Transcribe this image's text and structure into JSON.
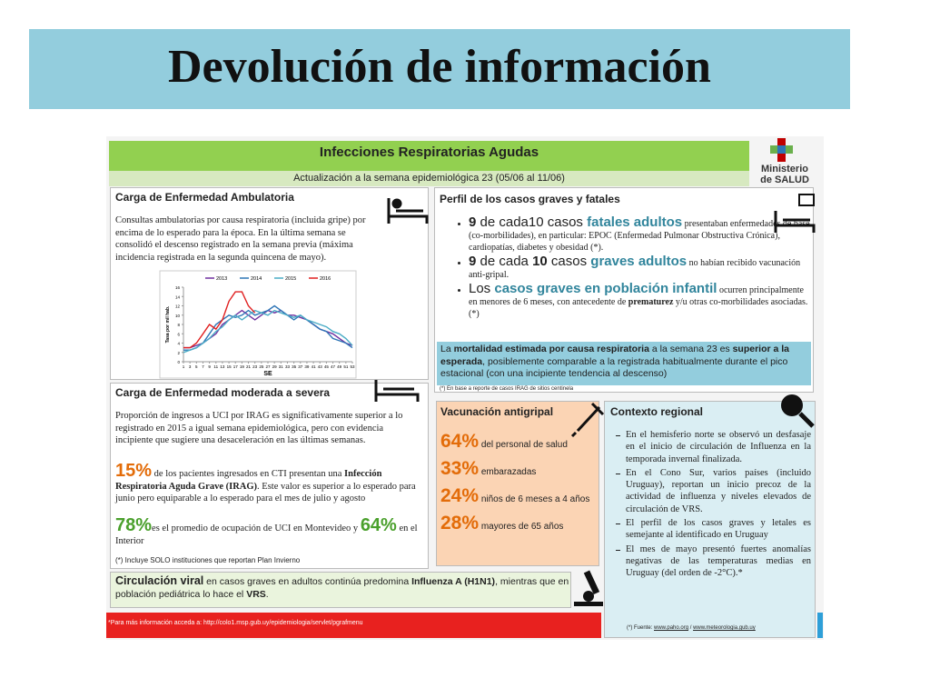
{
  "title": "Devolución de información",
  "header": {
    "title": "Infecciones Respiratorias Agudas",
    "subtitle": "Actualización a la semana epidemiológica 23 (05/06 al 11/06)",
    "logo": [
      "Ministerio",
      "de SALUD"
    ]
  },
  "ambulatoria": {
    "title": "Carga de Enfermedad Ambulatoria",
    "text": "Consultas ambulatorias por causa respiratoria (incluida gripe) por encima de lo esperado para la época. En la última semana se consolidó el descenso registrado en la semana previa (máxima incidencia registrada en la segunda quincena de mayo)."
  },
  "chart_data": {
    "type": "line",
    "xlabel": "SE",
    "ylabel": "Tasa por mil hab.",
    "x": [
      1,
      3,
      5,
      7,
      9,
      11,
      13,
      15,
      17,
      19,
      21,
      23,
      25,
      27,
      29,
      31,
      33,
      35,
      37,
      39,
      41,
      43,
      45,
      47,
      49,
      51,
      53
    ],
    "xlim": [
      1,
      53
    ],
    "xticks": [
      1,
      3,
      5,
      7,
      9,
      11,
      13,
      15,
      17,
      19,
      21,
      23,
      25,
      27,
      29,
      31,
      33,
      35,
      37,
      39,
      41,
      43,
      45,
      47,
      49,
      51,
      53
    ],
    "ylim": [
      0,
      16
    ],
    "yticks": [
      0,
      2,
      4,
      6,
      8,
      10,
      12,
      14,
      16
    ],
    "series": [
      {
        "name": "2013",
        "color": "#7030a0",
        "values": [
          3,
          3,
          3.5,
          4,
          5,
          6,
          8,
          9,
          10,
          11,
          10,
          9,
          10,
          11,
          10.5,
          11,
          10,
          10,
          9.5,
          9,
          8,
          7,
          6.5,
          6,
          5,
          4,
          3.5
        ]
      },
      {
        "name": "2014",
        "color": "#2e75b6",
        "values": [
          2.5,
          2.5,
          3,
          4,
          6,
          8,
          9,
          10,
          9.5,
          10,
          11,
          10,
          10.5,
          11,
          12,
          11,
          10,
          9,
          10,
          9,
          8,
          7,
          6.5,
          5,
          4.5,
          4,
          3
        ]
      },
      {
        "name": "2015",
        "color": "#4bacc6",
        "values": [
          2,
          2.5,
          3,
          4,
          5,
          6.5,
          7.5,
          9,
          10,
          9,
          10,
          11,
          10.5,
          10,
          11,
          10.5,
          10,
          9.5,
          10,
          9,
          8.5,
          8,
          7.5,
          6.5,
          6,
          5,
          3.5
        ]
      },
      {
        "name": "2016",
        "color": "#e02020",
        "values": [
          3,
          3,
          4,
          6,
          8,
          7,
          9,
          13,
          15,
          15,
          12,
          10.5,
          null,
          null,
          null,
          null,
          null,
          null,
          null,
          null,
          null,
          null,
          null,
          null,
          null,
          null,
          null
        ]
      }
    ]
  },
  "moderada": {
    "title": "Carga de Enfermedad moderada a severa",
    "text": "Proporción de ingresos a UCI por IRAG es significativamente superior a lo registrado en 2015 a igual semana epidemiológica, pero con evidencia incipiente que sugiere una desaceleración en las últimas semanas.",
    "stat1": [
      "15%",
      " de los pacientes ingresados en CTI presentan una ",
      "Infección Respiratoria Aguda Grave (IRAG)",
      ". Este valor es superior a lo esperado para junio pero equiparable a lo esperado para el mes de julio y agosto"
    ],
    "stat2": [
      "78%",
      "es el promedio de ocupación de UCI en Montevideo y ",
      "64%",
      " en el Interior"
    ],
    "note": "(*) Incluye SOLO instituciones que reportan Plan Invierno"
  },
  "circulacion": [
    "Circulación viral",
    " en casos graves en adultos continúa predomina ",
    "Influenza A (H1N1)",
    ", mientras que en población pediátrica lo hace el ",
    "VRS",
    "."
  ],
  "perfil": {
    "title": "Perfil de los casos graves y fatales",
    "bullets": [
      [
        "9",
        " de cada",
        "10",
        " casos ",
        "fatales adultos",
        " presentaban enfermedades de base (co-morbilidades), en particular: EPOC (Enfermedad Pulmonar Obstructiva Crónica), cardiopatías, diabetes y obesidad (*)."
      ],
      [
        "9",
        " de cada ",
        "10",
        " casos ",
        "graves adultos",
        " no habían recibido vacunación anti-gripal."
      ],
      [
        "Los ",
        "casos graves en población infantil",
        " ocurren principalmente en menores de 6 meses, con antecedente de ",
        "prematurez",
        " y/u otras co-morbilidades asociadas. (*)"
      ]
    ],
    "band": [
      "La ",
      "mortalidad estimada por causa respiratoria",
      " a la semana 23 es ",
      "superior a la esperada",
      ", posiblemente comparable a la registrada habitualmente durante el pico estacional (con una incipiente tendencia al descenso)"
    ],
    "note": "(*) En base a reporte de casos IRAG de sitios centinela"
  },
  "vacunacion": {
    "title": "Vacunación antigripal",
    "items": [
      [
        "64%",
        "del personal de salud"
      ],
      [
        "33%",
        "embarazadas"
      ],
      [
        "24%",
        "niños de 6 meses a 4 años"
      ],
      [
        "28%",
        "mayores de 65 años"
      ]
    ]
  },
  "contexto": {
    "title": "Contexto regional",
    "bullets": [
      "En el hemisferio norte se observó un desfasaje en el inicio de circulación de Influenza en la temporada invernal finalizada.",
      "En el Cono Sur, varios países (incluido Uruguay), reportan un inicio precoz de la actividad de influenza y niveles elevados de circulación de VRS.",
      "El perfil de los casos graves y letales es semejante al identificado en Uruguay",
      "El mes de mayo presentó fuertes anomalías negativas de las temperaturas medias en Uruguay (del orden de -2°C).*"
    ],
    "note": [
      "(*) Fuente: ",
      "www.paho.org",
      " / ",
      "www.meteorologia.gub.uy"
    ]
  },
  "footer": "*Para más información acceda a: http://colo1.msp.gub.uy/epidemiologia/servlet/pgrafmenu"
}
